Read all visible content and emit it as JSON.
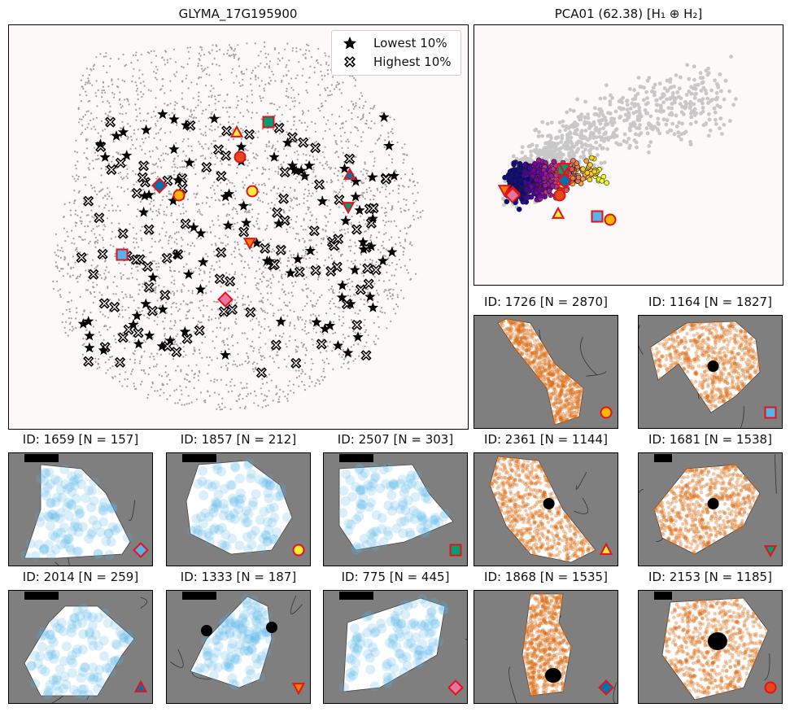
{
  "main_panel": {
    "title": "GLYMA_17G195900",
    "legend": [
      {
        "label": "Lowest 10%",
        "marker": "star-icon"
      },
      {
        "label": "Highest 10%",
        "marker": "cross-icon"
      }
    ]
  },
  "pca_panel": {
    "title": "PCA01 (62.38) [H₁ ⊕ H₂]"
  },
  "nucleus_panels": [
    {
      "title": "ID: 1726 [N = 2870]",
      "color": "orange",
      "marker": "circle",
      "mcolor": "#f5b800"
    },
    {
      "title": "ID: 1164 [N = 1827]",
      "color": "orange",
      "marker": "square",
      "mcolor": "#56b4e9"
    },
    {
      "title": "ID: 1659 [N = 157]",
      "color": "blue",
      "marker": "diamond",
      "mcolor": "#56b4e9"
    },
    {
      "title": "ID: 1857 [N = 212]",
      "color": "blue",
      "marker": "circle",
      "mcolor": "#ffee33"
    },
    {
      "title": "ID: 2507 [N = 303]",
      "color": "blue",
      "marker": "square",
      "mcolor": "#009e73"
    },
    {
      "title": "ID: 2361 [N = 1144]",
      "color": "orange",
      "marker": "triangle-up",
      "mcolor": "#ffee33"
    },
    {
      "title": "ID: 1681 [N = 1538]",
      "color": "orange",
      "marker": "triangle-down",
      "mcolor": "#009e73"
    },
    {
      "title": "ID: 2014 [N = 259]",
      "color": "blue",
      "marker": "triangle-up",
      "mcolor": "#0072b2"
    },
    {
      "title": "ID: 1333 [N = 187]",
      "color": "blue",
      "marker": "triangle-down",
      "mcolor": "#ff7f00"
    },
    {
      "title": "ID: 775 [N = 445]",
      "color": "blue",
      "marker": "diamond",
      "mcolor": "#e377a0"
    },
    {
      "title": "ID: 1868 [N = 1535]",
      "color": "orange",
      "marker": "diamond",
      "mcolor": "#0072b2"
    },
    {
      "title": "ID: 2153 [N = 1185]",
      "color": "orange",
      "marker": "circle",
      "mcolor": "#e34a1a"
    }
  ],
  "colors": {
    "background": "#fdf9f8",
    "cell_dots": "#a0a0a0",
    "lowest": "#000000",
    "highest_edge": "#000000",
    "nucleus_bg": "#7f7f7f",
    "blue_fill": "#56b4e9",
    "orange_fill": "#d96a10",
    "marker_edge": "#e8101a"
  },
  "chart_data": [
    {
      "type": "scatter",
      "title": "GLYMA_17G195900",
      "xlabel": "",
      "ylabel": "",
      "axes_ticks": false,
      "series": [
        {
          "name": "Lowest 10%",
          "marker": "star"
        },
        {
          "name": "Highest 10%",
          "marker": "cross"
        }
      ],
      "highlighted_nuclei": [
        {
          "id": "1726",
          "marker": "circle",
          "color": "#f5b800"
        },
        {
          "id": "1164",
          "marker": "square",
          "color": "#56b4e9"
        },
        {
          "id": "1659",
          "marker": "diamond",
          "color": "#56b4e9"
        },
        {
          "id": "1857",
          "marker": "circle",
          "color": "#ffee33"
        },
        {
          "id": "2507",
          "marker": "square",
          "color": "#009e73"
        },
        {
          "id": "2361",
          "marker": "triangle-up",
          "color": "#ffee33"
        },
        {
          "id": "1681",
          "marker": "triangle-down",
          "color": "#009e73"
        },
        {
          "id": "2014",
          "marker": "triangle-up",
          "color": "#0072b2"
        },
        {
          "id": "1333",
          "marker": "triangle-down",
          "color": "#ff7f00"
        },
        {
          "id": "775",
          "marker": "diamond",
          "color": "#e377a0"
        },
        {
          "id": "1868",
          "marker": "diamond",
          "color": "#0072b2"
        },
        {
          "id": "2153",
          "marker": "circle",
          "color": "#e34a1a"
        }
      ]
    },
    {
      "type": "scatter",
      "title": "PCA01 (62.38) [H₁ ⊕ H₂]",
      "xlabel": "",
      "ylabel": "",
      "axes_ticks": false,
      "colormap": "plasma"
    }
  ]
}
